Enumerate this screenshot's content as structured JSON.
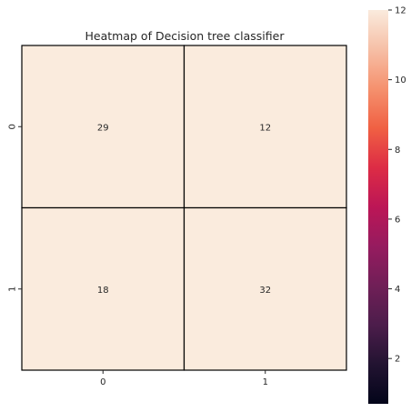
{
  "chart_data": {
    "type": "heatmap",
    "title": "Heatmap of Decision tree classifier",
    "xlabel": "",
    "ylabel": "",
    "x_categories": [
      "0",
      "1"
    ],
    "y_categories": [
      "0",
      "1"
    ],
    "values": [
      [
        29,
        12
      ],
      [
        18,
        32
      ]
    ],
    "cell_color": "#faebdd",
    "cell_line_color": "#000000",
    "colorbar": {
      "min": 0.7,
      "max": 12,
      "ticks": [
        2,
        4,
        6,
        8,
        10,
        12
      ],
      "colormap": "rocket"
    }
  }
}
